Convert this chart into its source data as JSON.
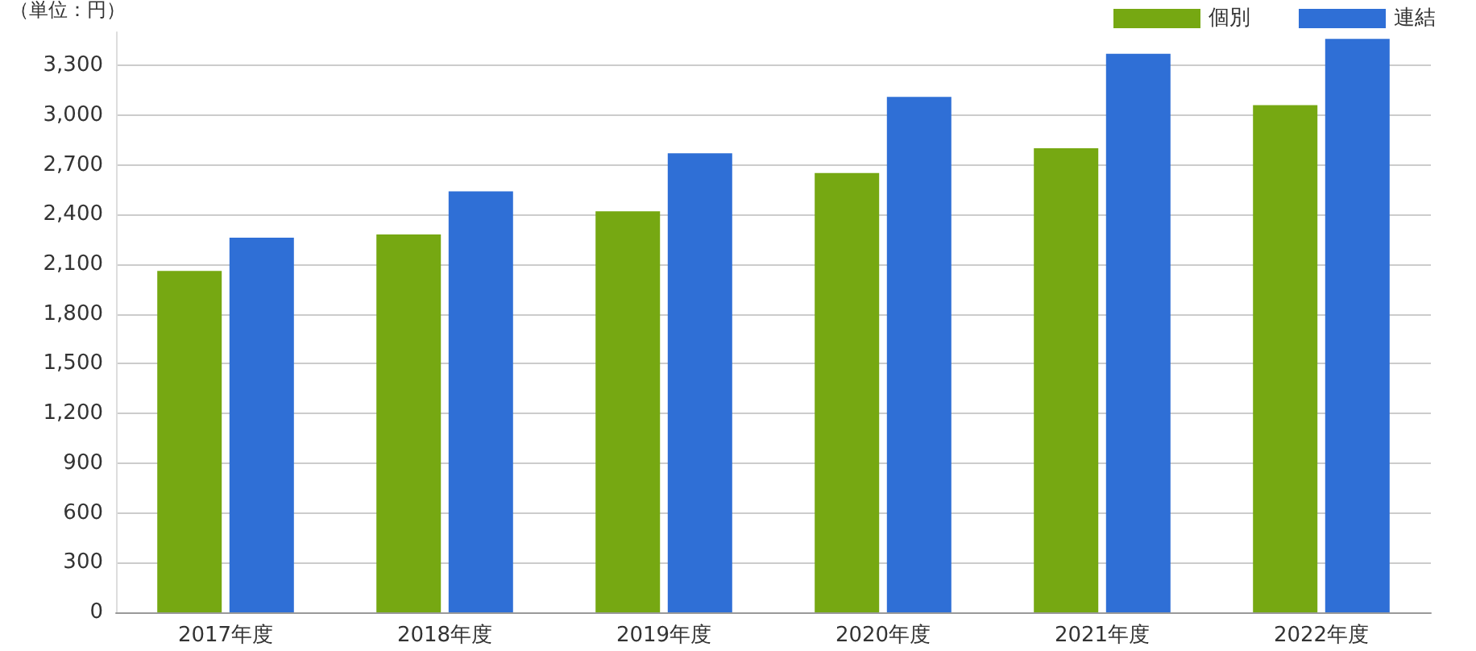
{
  "chart_data": {
    "type": "bar",
    "ylabel": "（単位：円）",
    "categories": [
      "2017年度",
      "2018年度",
      "2019年度",
      "2020年度",
      "2021年度",
      "2022年度"
    ],
    "series": [
      {
        "name": "個別",
        "color": "#76a812",
        "values": [
          2060,
          2280,
          2420,
          2650,
          2800,
          3060
        ]
      },
      {
        "name": "連結",
        "color": "#2f6fd6",
        "values": [
          2260,
          2540,
          2770,
          3110,
          3370,
          3460
        ]
      }
    ],
    "ylim": [
      0,
      3500
    ],
    "yticks": [
      0,
      300,
      600,
      900,
      {
        "value": 1200,
        "label": "1,200"
      },
      {
        "value": 1500,
        "label": "1,500"
      },
      {
        "value": 1800,
        "label": "1,800"
      },
      {
        "value": 2100,
        "label": "2,100"
      },
      {
        "value": 2400,
        "label": "2,400"
      },
      {
        "value": 2700,
        "label": "2,700"
      },
      {
        "value": 3000,
        "label": "3,000"
      },
      {
        "value": 3300,
        "label": "3,300"
      }
    ],
    "grid": "y",
    "legend": "top right"
  }
}
